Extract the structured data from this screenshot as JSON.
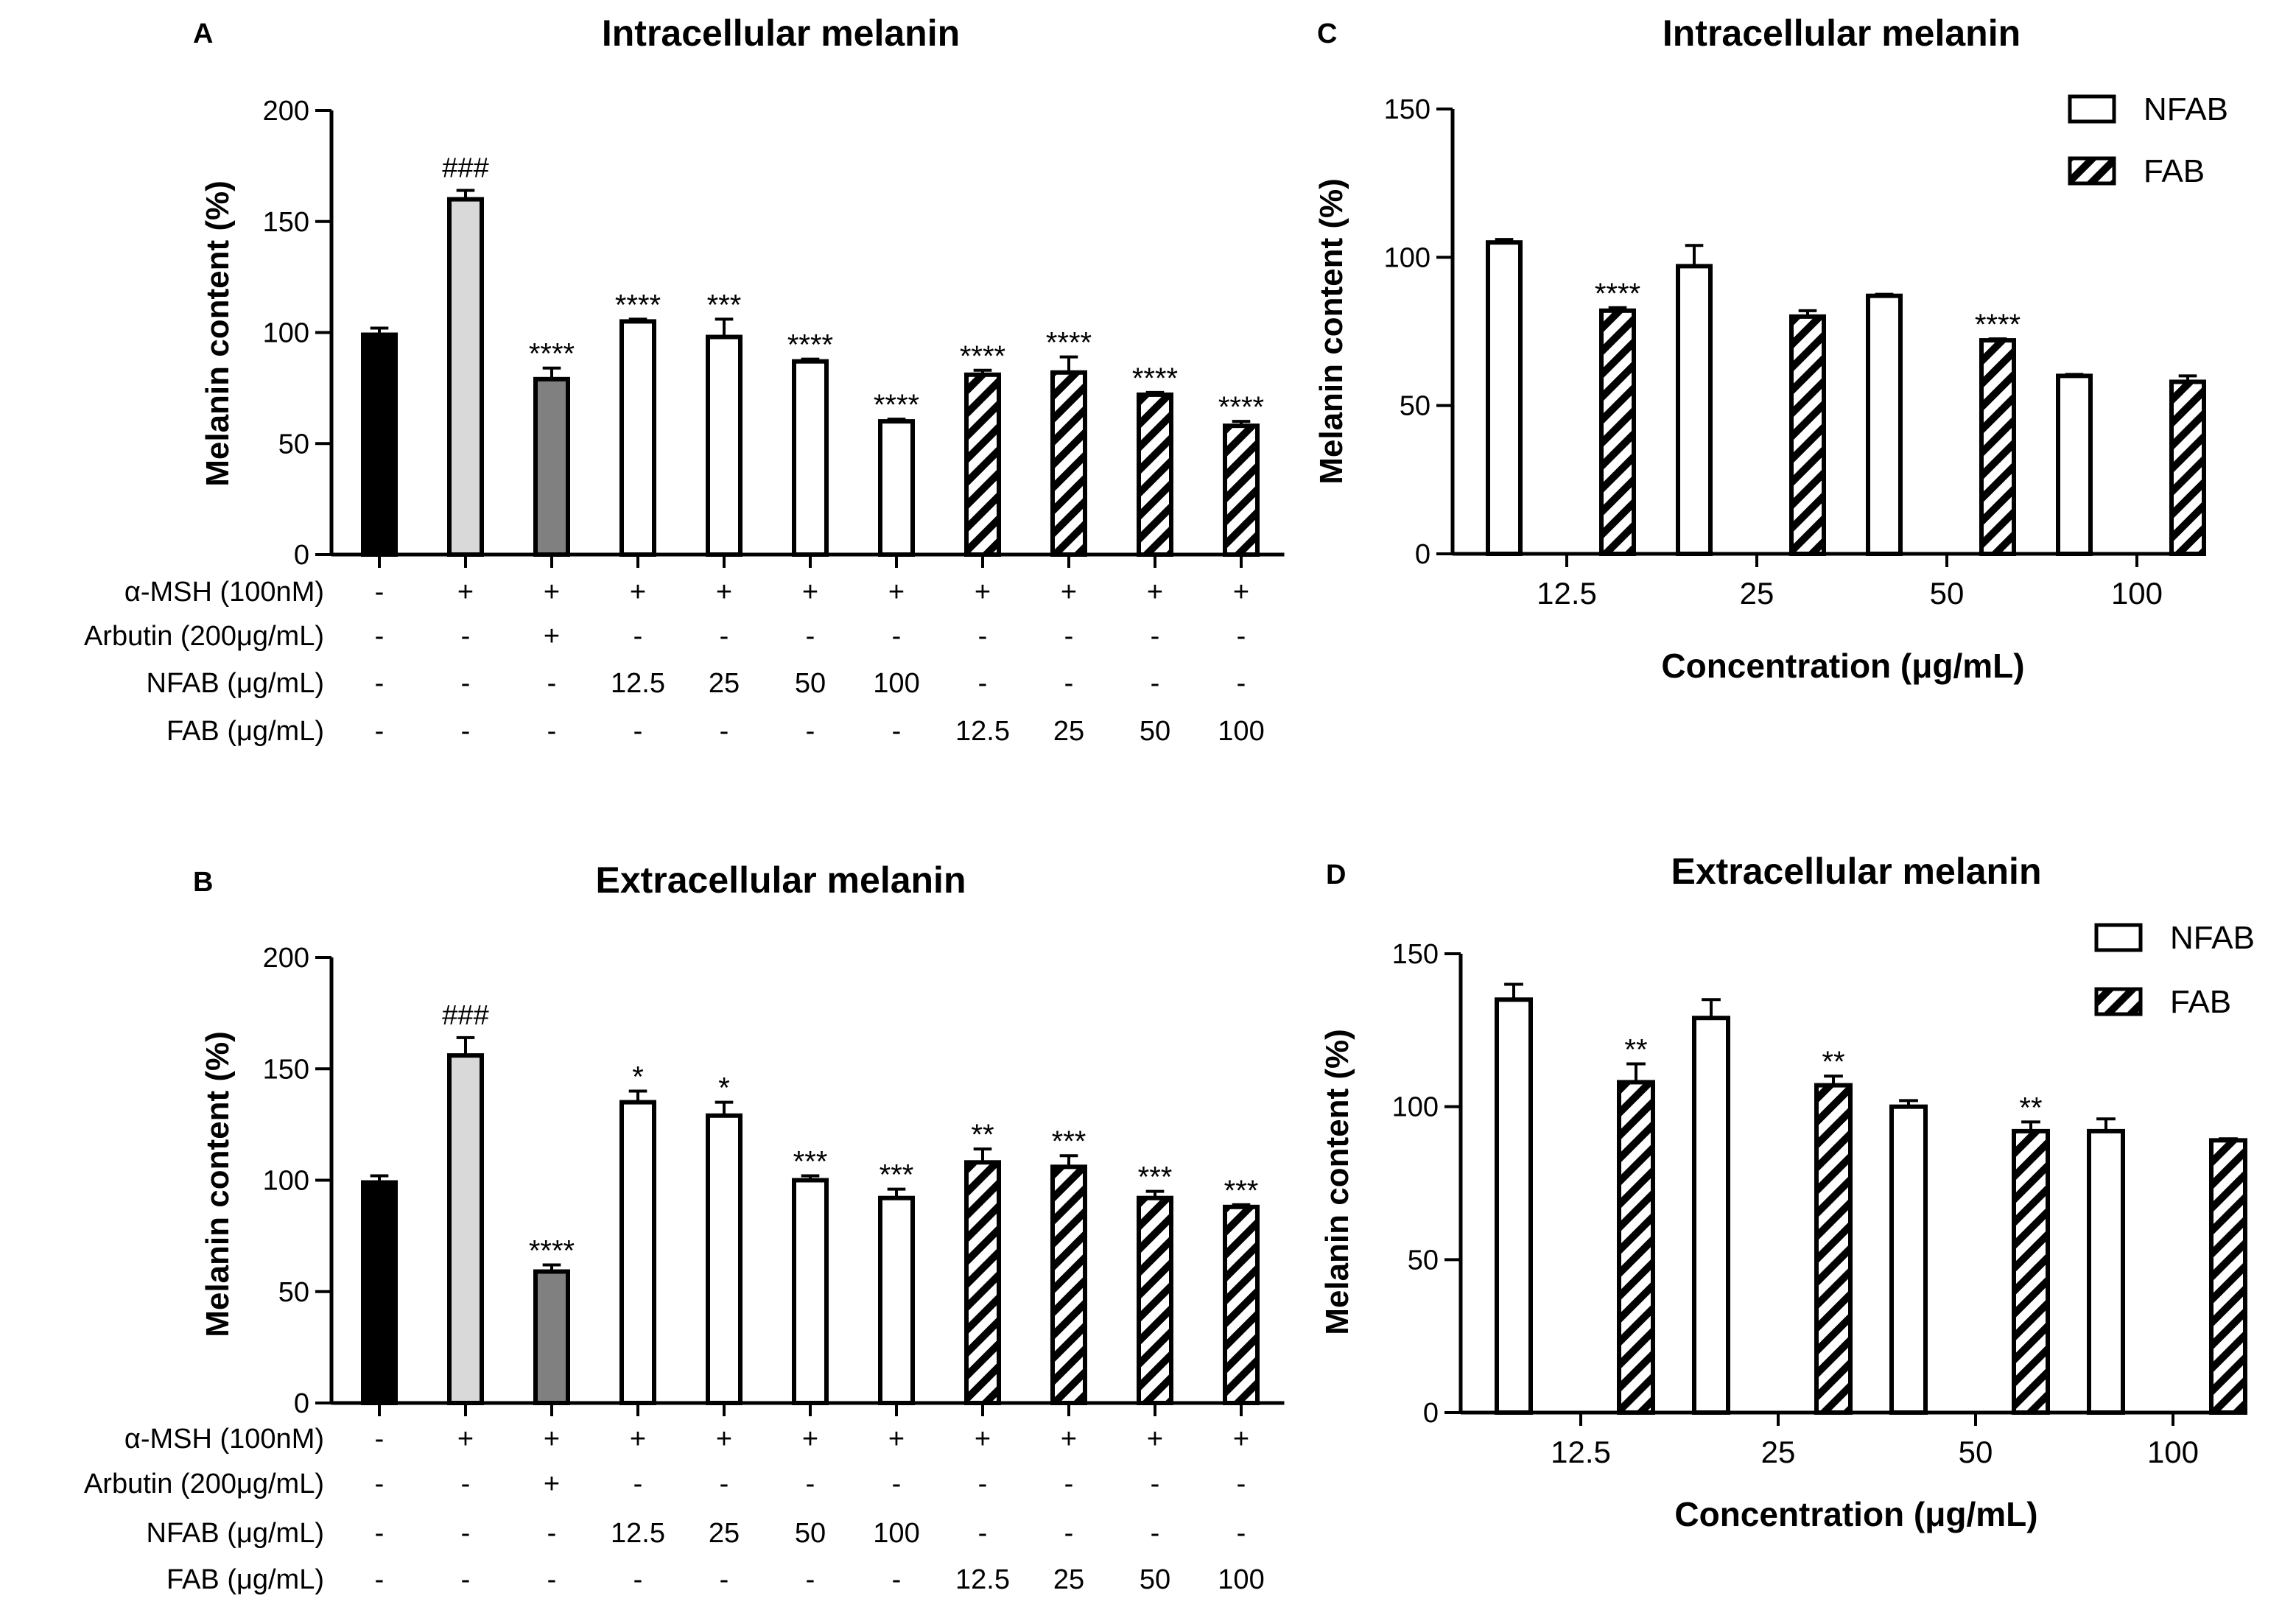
{
  "chart_data": [
    {
      "panel": "A",
      "type": "bar",
      "title": "Intracellular melanin",
      "ylabel": "Melanin content (%)",
      "ylim": [
        0,
        200
      ],
      "yticks": [
        0,
        50,
        100,
        150,
        200
      ],
      "bars": [
        {
          "value": 99,
          "error": 3,
          "annotation": "",
          "style": "black"
        },
        {
          "value": 160,
          "error": 4,
          "annotation": "###",
          "style": "lightgray"
        },
        {
          "value": 79,
          "error": 5,
          "annotation": "****",
          "style": "darkgray"
        },
        {
          "value": 105,
          "error": 1,
          "annotation": "****",
          "style": "white"
        },
        {
          "value": 98,
          "error": 8,
          "annotation": "***",
          "style": "white"
        },
        {
          "value": 87,
          "error": 1,
          "annotation": "****",
          "style": "white"
        },
        {
          "value": 60,
          "error": 1,
          "annotation": "****",
          "style": "white"
        },
        {
          "value": 81,
          "error": 2,
          "annotation": "****",
          "style": "hatched"
        },
        {
          "value": 82,
          "error": 7,
          "annotation": "****",
          "style": "hatched"
        },
        {
          "value": 72,
          "error": 1,
          "annotation": "****",
          "style": "hatched"
        },
        {
          "value": 58,
          "error": 2,
          "annotation": "****",
          "style": "hatched"
        }
      ],
      "treatment_rows": [
        {
          "label": "α-MSH (100nM)",
          "values": [
            "-",
            "+",
            "+",
            "+",
            "+",
            "+",
            "+",
            "+",
            "+",
            "+",
            "+"
          ]
        },
        {
          "label": "Arbutin (200μg/mL)",
          "values": [
            "-",
            "-",
            "+",
            "-",
            "-",
            "-",
            "-",
            "-",
            "-",
            "-",
            "-"
          ]
        },
        {
          "label": "NFAB (μg/mL)",
          "values": [
            "-",
            "-",
            "-",
            "12.5",
            "25",
            "50",
            "100",
            "-",
            "-",
            "-",
            "-"
          ]
        },
        {
          "label": "FAB (μg/mL)",
          "values": [
            "-",
            "-",
            "-",
            "-",
            "-",
            "-",
            "-",
            "12.5",
            "25",
            "50",
            "100"
          ]
        }
      ]
    },
    {
      "panel": "B",
      "type": "bar",
      "title": "Extracellular melanin",
      "ylabel": "Melanin content (%)",
      "ylim": [
        0,
        200
      ],
      "yticks": [
        0,
        50,
        100,
        150,
        200
      ],
      "bars": [
        {
          "value": 99,
          "error": 3,
          "annotation": "",
          "style": "black"
        },
        {
          "value": 156,
          "error": 8,
          "annotation": "###",
          "style": "lightgray"
        },
        {
          "value": 59,
          "error": 3,
          "annotation": "****",
          "style": "darkgray"
        },
        {
          "value": 135,
          "error": 5,
          "annotation": "*",
          "style": "white"
        },
        {
          "value": 129,
          "error": 6,
          "annotation": "*",
          "style": "white"
        },
        {
          "value": 100,
          "error": 2,
          "annotation": "***",
          "style": "white"
        },
        {
          "value": 92,
          "error": 4,
          "annotation": "***",
          "style": "white"
        },
        {
          "value": 108,
          "error": 6,
          "annotation": "**",
          "style": "hatched"
        },
        {
          "value": 106,
          "error": 5,
          "annotation": "***",
          "style": "hatched"
        },
        {
          "value": 92,
          "error": 3,
          "annotation": "***",
          "style": "hatched"
        },
        {
          "value": 88,
          "error": 1,
          "annotation": "***",
          "style": "hatched"
        }
      ],
      "treatment_rows": [
        {
          "label": "α-MSH (100nM)",
          "values": [
            "-",
            "+",
            "+",
            "+",
            "+",
            "+",
            "+",
            "+",
            "+",
            "+",
            "+"
          ]
        },
        {
          "label": "Arbutin (200μg/mL)",
          "values": [
            "-",
            "-",
            "+",
            "-",
            "-",
            "-",
            "-",
            "-",
            "-",
            "-",
            "-"
          ]
        },
        {
          "label": "NFAB (μg/mL)",
          "values": [
            "-",
            "-",
            "-",
            "12.5",
            "25",
            "50",
            "100",
            "-",
            "-",
            "-",
            "-"
          ]
        },
        {
          "label": "FAB (μg/mL)",
          "values": [
            "-",
            "-",
            "-",
            "-",
            "-",
            "-",
            "-",
            "12.5",
            "25",
            "50",
            "100"
          ]
        }
      ]
    },
    {
      "panel": "C",
      "type": "bar",
      "title": "Intracellular melanin",
      "ylabel": "Melanin content (%)",
      "xlabel": "Concentration (μg/mL)",
      "ylim": [
        0,
        150
      ],
      "yticks": [
        0,
        50,
        100,
        150
      ],
      "categories": [
        "12.5",
        "25",
        "50",
        "100"
      ],
      "series": [
        {
          "name": "NFAB",
          "style": "white",
          "values": [
            105,
            97,
            87,
            60
          ],
          "errors": [
            1,
            7,
            0.5,
            0.5
          ],
          "annotations": [
            "",
            "",
            "",
            ""
          ]
        },
        {
          "name": "FAB",
          "style": "hatched",
          "values": [
            82,
            80,
            72,
            58
          ],
          "errors": [
            1,
            2,
            0.5,
            2
          ],
          "annotations": [
            "****",
            "",
            "****",
            ""
          ]
        }
      ],
      "legend": "top-right"
    },
    {
      "panel": "D",
      "type": "bar",
      "title": "Extracellular melanin",
      "ylabel": "Melanin content (%)",
      "xlabel": "Concentration (μg/mL)",
      "ylim": [
        0,
        150
      ],
      "yticks": [
        0,
        50,
        100,
        150
      ],
      "categories": [
        "12.5",
        "25",
        "50",
        "100"
      ],
      "series": [
        {
          "name": "NFAB",
          "style": "white",
          "values": [
            135,
            129,
            100,
            92
          ],
          "errors": [
            5,
            6,
            2,
            4
          ],
          "annotations": [
            "",
            "",
            "",
            ""
          ]
        },
        {
          "name": "FAB",
          "style": "hatched",
          "values": [
            108,
            107,
            92,
            89
          ],
          "errors": [
            6,
            3,
            3,
            0.5
          ],
          "annotations": [
            "**",
            "**",
            "**",
            ""
          ]
        }
      ],
      "legend": "top-right"
    }
  ]
}
